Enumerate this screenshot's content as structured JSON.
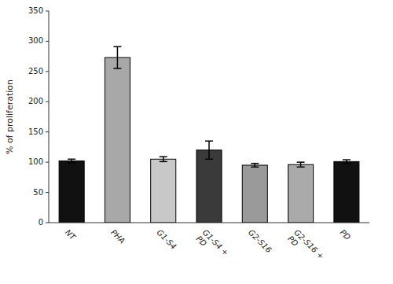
{
  "chart_data": {
    "type": "bar",
    "categories": [
      "NT",
      "PHA",
      "G1-S4",
      "G1-S4 +\nPD",
      "G2-S16",
      "G2-S16 +\nPD",
      "PD"
    ],
    "values": [
      102,
      273,
      105,
      120,
      95,
      96,
      101
    ],
    "errors": [
      3,
      18,
      4,
      15,
      3,
      4,
      3
    ],
    "colors": [
      "#111111",
      "#a8a8a8",
      "#c8c8c8",
      "#3a3a3a",
      "#9a9a9a",
      "#aaaaaa",
      "#111111"
    ],
    "ylabel": "% of proliferation",
    "ylim": [
      0,
      350
    ],
    "yticks": [
      0,
      50,
      100,
      150,
      200,
      250,
      300,
      350
    ],
    "grid": false
  }
}
